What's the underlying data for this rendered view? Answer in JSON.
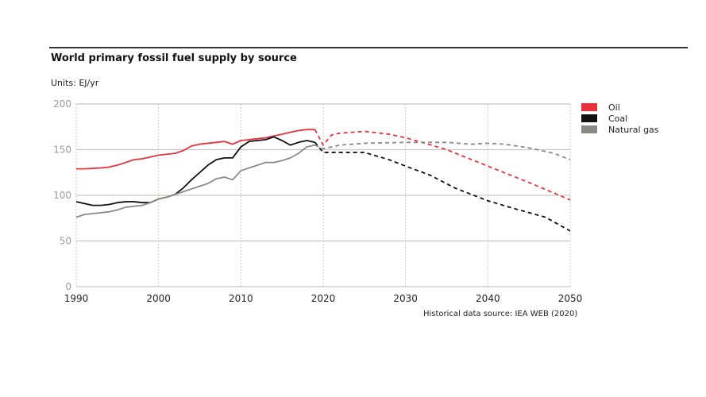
{
  "chart_data": {
    "type": "line",
    "title": "World primary fossil fuel supply by source",
    "ylabel": "Units: EJ/yr",
    "xlabel": "",
    "xlim": [
      1990,
      2050
    ],
    "ylim": [
      0,
      200
    ],
    "x_ticks": [
      "1990",
      "2000",
      "2010",
      "2020",
      "2030",
      "2040",
      "2050"
    ],
    "y_ticks": [
      "0",
      "50",
      "100",
      "150",
      "200"
    ],
    "grid": "horizontal solid, vertical dotted",
    "legend_position": "right",
    "source_note": "Historical data source: IEA WEB (2020)",
    "series": [
      {
        "name": "Oil",
        "color": "#e8323c",
        "historical": {
          "x": [
            1990,
            1991,
            1992,
            1993,
            1994,
            1995,
            1996,
            1997,
            1998,
            1999,
            2000,
            2001,
            2002,
            2003,
            2004,
            2005,
            2006,
            2007,
            2008,
            2009,
            2010,
            2011,
            2012,
            2013,
            2014,
            2015,
            2016,
            2017,
            2018,
            2019
          ],
          "y": [
            129,
            129,
            129.5,
            130,
            131,
            133,
            136,
            139,
            140,
            142,
            144,
            145,
            146,
            149,
            154,
            156,
            157,
            158,
            159,
            156,
            160,
            161,
            162,
            163,
            165,
            167,
            169,
            171,
            172,
            172
          ]
        },
        "projection": {
          "x": [
            2019,
            2020,
            2021,
            2022,
            2025,
            2028,
            2030,
            2032,
            2035,
            2040,
            2045,
            2050
          ],
          "y": [
            172,
            155,
            166,
            168,
            170,
            167,
            163,
            158,
            150,
            132,
            114,
            95
          ]
        }
      },
      {
        "name": "Coal",
        "color": "#111111",
        "historical": {
          "x": [
            1990,
            1991,
            1992,
            1993,
            1994,
            1995,
            1996,
            1997,
            1998,
            1999,
            2000,
            2001,
            2002,
            2003,
            2004,
            2005,
            2006,
            2007,
            2008,
            2009,
            2010,
            2011,
            2012,
            2013,
            2014,
            2015,
            2016,
            2017,
            2018,
            2019
          ],
          "y": [
            93,
            91,
            89,
            89,
            90,
            92,
            93,
            93,
            92,
            92,
            96,
            98,
            101,
            108,
            117,
            125,
            133,
            139,
            141,
            141,
            153,
            159,
            160,
            161,
            164,
            160,
            155,
            158,
            160,
            158
          ]
        },
        "projection": {
          "x": [
            2019,
            2020,
            2022,
            2025,
            2028,
            2030,
            2033,
            2036,
            2040,
            2043,
            2047,
            2050
          ],
          "y": [
            158,
            147,
            147,
            147,
            139,
            132,
            122,
            108,
            94,
            86,
            76,
            61
          ]
        }
      },
      {
        "name": "Natural gas",
        "color": "#8c8a86",
        "historical": {
          "x": [
            1990,
            1991,
            1992,
            1993,
            1994,
            1995,
            1996,
            1997,
            1998,
            1999,
            2000,
            2001,
            2002,
            2003,
            2004,
            2005,
            2006,
            2007,
            2008,
            2009,
            2010,
            2011,
            2012,
            2013,
            2014,
            2015,
            2016,
            2017,
            2018,
            2019
          ],
          "y": [
            76,
            79,
            80,
            81,
            82,
            84,
            87,
            88,
            89,
            92,
            96,
            98,
            101,
            104,
            107,
            110,
            113,
            118,
            120,
            117,
            127,
            130,
            133,
            136,
            136,
            138,
            141,
            146,
            153,
            155
          ]
        },
        "projection": {
          "x": [
            2019,
            2020,
            2022,
            2025,
            2030,
            2035,
            2038,
            2040,
            2042,
            2045,
            2048,
            2050
          ],
          "y": [
            155,
            151,
            155,
            157,
            158,
            158,
            156,
            157,
            156,
            152,
            146,
            139
          ]
        }
      }
    ]
  }
}
